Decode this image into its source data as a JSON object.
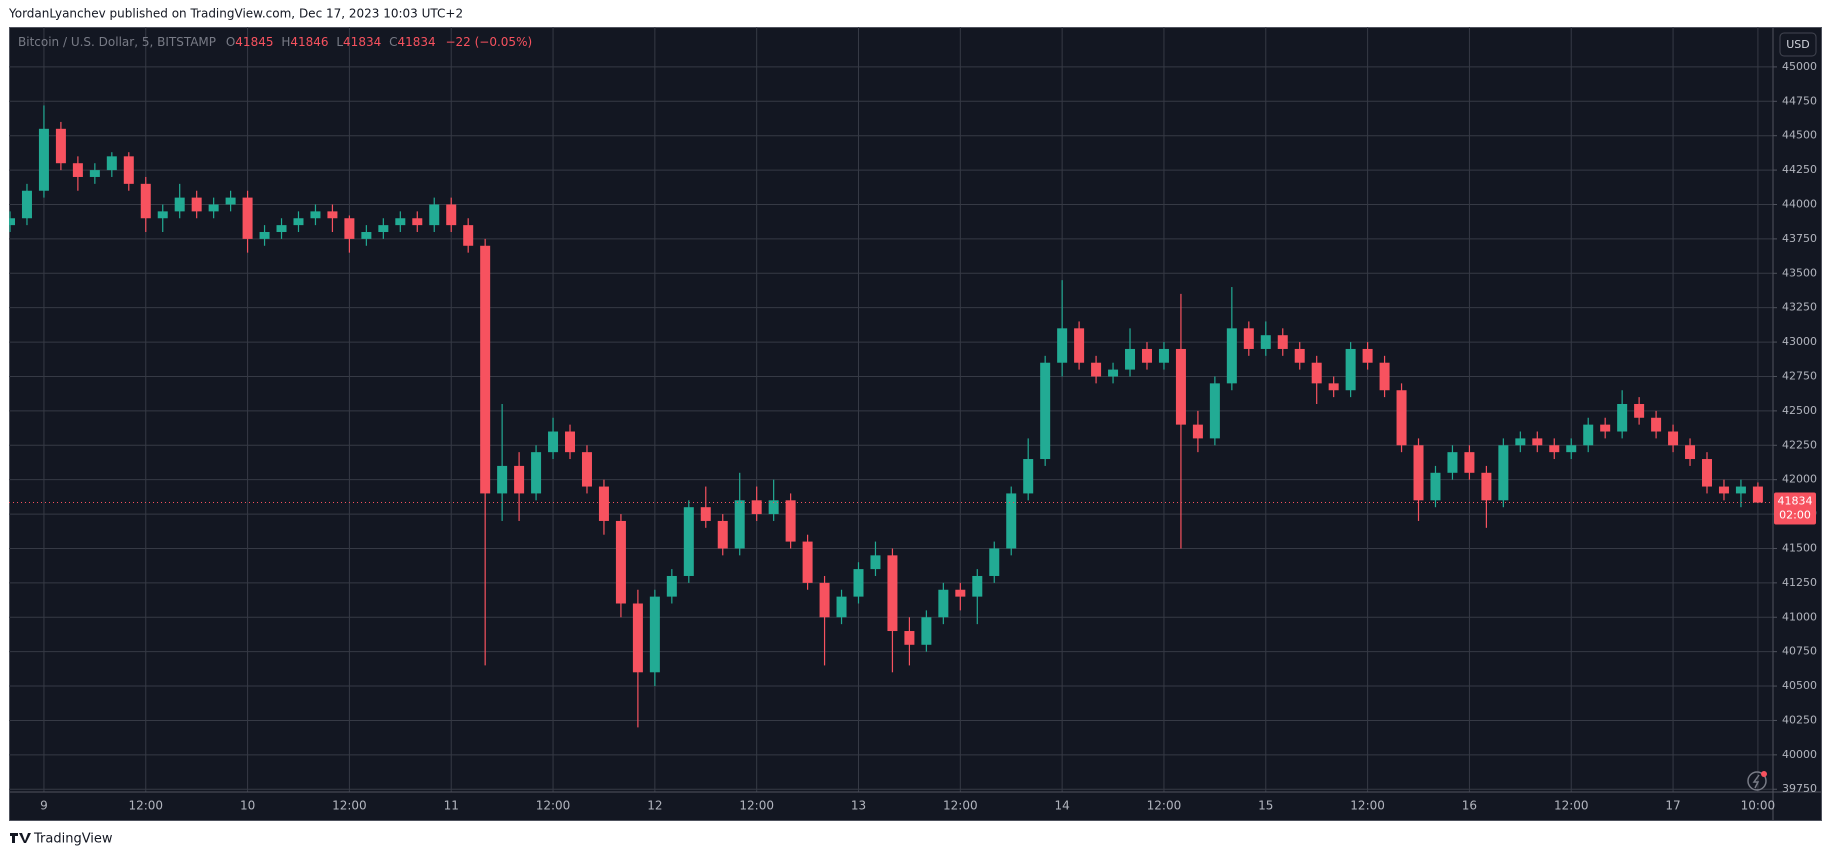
{
  "header": {
    "publisher": "YordanLyanchev published on TradingView.com, Dec 17, 2023 10:03 UTC+2"
  },
  "footer": {
    "brand": "TradingView"
  },
  "chart_data": {
    "type": "candlestick",
    "legend": {
      "symbol": "Bitcoin / U.S. Dollar, 5, BITSTAMP",
      "fields": [
        {
          "key": "O",
          "value": 41845
        },
        {
          "key": "H",
          "value": 41846
        },
        {
          "key": "L",
          "value": 41834
        },
        {
          "key": "C",
          "value": 41834
        }
      ],
      "change": "−22 (−0.05%)"
    },
    "currency": "USD",
    "last_price": 41834,
    "countdown": "02:00",
    "up_color": "#22ab94",
    "down_color": "#f7525f",
    "grid": true,
    "categories": [
      null,
      null,
      "9",
      null,
      null,
      null,
      null,
      null,
      "12:00",
      null,
      null,
      null,
      null,
      null,
      "10",
      null,
      null,
      null,
      null,
      null,
      "12:00",
      null,
      null,
      null,
      null,
      null,
      "11",
      null,
      null,
      null,
      null,
      null,
      "12:00",
      null,
      null,
      null,
      null,
      null,
      "12",
      null,
      null,
      null,
      null,
      null,
      "12:00",
      null,
      null,
      null,
      null,
      null,
      "13",
      null,
      null,
      null,
      null,
      null,
      "12:00",
      null,
      null,
      null,
      null,
      null,
      "14",
      null,
      null,
      null,
      null,
      null,
      "12:00",
      null,
      null,
      null,
      null,
      null,
      "15",
      null,
      null,
      null,
      null,
      null,
      "12:00",
      null,
      null,
      null,
      null,
      null,
      "16",
      null,
      null,
      null,
      null,
      null,
      "12:00",
      null,
      null,
      null,
      null,
      null,
      "17",
      null,
      null,
      null,
      null,
      "10:00"
    ],
    "open": [
      43850,
      43900,
      44100,
      44550,
      44300,
      44200,
      44250,
      44350,
      44150,
      43900,
      43950,
      44050,
      43950,
      44000,
      44050,
      43750,
      43800,
      43850,
      43900,
      43950,
      43900,
      43750,
      43800,
      43850,
      43900,
      43850,
      44000,
      43850,
      43700,
      41900,
      42100,
      41900,
      42200,
      42350,
      42200,
      41950,
      41700,
      41100,
      40600,
      41150,
      41300,
      41800,
      41700,
      41500,
      41850,
      41750,
      41850,
      41550,
      41250,
      41000,
      41150,
      41350,
      41450,
      40900,
      40800,
      41000,
      41200,
      41150,
      41300,
      41500,
      41900,
      42150,
      42850,
      43100,
      42850,
      42750,
      42800,
      42950,
      42850,
      42950,
      42400,
      42300,
      42700,
      43100,
      42950,
      43050,
      42950,
      42850,
      42700,
      42650,
      42950,
      42850,
      42650,
      42250,
      41850,
      42050,
      42200,
      42050,
      41850,
      42250,
      42300,
      42250,
      42200,
      42250,
      42400,
      42350,
      42550,
      42450,
      42350,
      42250,
      42150,
      41950,
      41900,
      41950
    ],
    "high": [
      43950,
      44150,
      44720,
      44600,
      44350,
      44300,
      44380,
      44380,
      44200,
      44000,
      44150,
      44100,
      44050,
      44100,
      44100,
      43850,
      43900,
      43950,
      44000,
      44000,
      43920,
      43850,
      43900,
      43950,
      43950,
      44050,
      44050,
      43900,
      43750,
      42550,
      42200,
      42250,
      42450,
      42400,
      42250,
      42000,
      41750,
      41200,
      41200,
      41350,
      41850,
      41950,
      41750,
      42050,
      41950,
      42000,
      41900,
      41600,
      41300,
      41200,
      41400,
      41550,
      41500,
      41000,
      41050,
      41250,
      41250,
      41350,
      41550,
      41950,
      42300,
      42900,
      43450,
      43150,
      42900,
      42850,
      43100,
      43000,
      43000,
      43350,
      42500,
      42750,
      43400,
      43150,
      43150,
      43100,
      43000,
      42900,
      42750,
      43000,
      43000,
      42900,
      42700,
      42300,
      42100,
      42250,
      42250,
      42100,
      42300,
      42350,
      42350,
      42300,
      42300,
      42450,
      42450,
      42650,
      42600,
      42500,
      42400,
      42300,
      42200,
      42000,
      42000,
      41980
    ],
    "low": [
      43800,
      43850,
      44050,
      44250,
      44100,
      44150,
      44200,
      44100,
      43800,
      43800,
      43900,
      43900,
      43900,
      43950,
      43650,
      43700,
      43750,
      43800,
      43850,
      43800,
      43650,
      43700,
      43750,
      43800,
      43800,
      43800,
      43800,
      43650,
      40650,
      41700,
      41700,
      41850,
      42150,
      42150,
      41900,
      41600,
      41000,
      40200,
      40500,
      41100,
      41250,
      41650,
      41450,
      41450,
      41700,
      41700,
      41500,
      41200,
      40650,
      40950,
      41100,
      41300,
      40600,
      40650,
      40750,
      40950,
      41050,
      40950,
      41250,
      41450,
      41850,
      42100,
      42750,
      42800,
      42700,
      42700,
      42750,
      42800,
      42800,
      41500,
      42200,
      42250,
      42650,
      42900,
      42900,
      42900,
      42800,
      42550,
      42600,
      42600,
      42800,
      42600,
      42200,
      41700,
      41800,
      42000,
      42000,
      41650,
      41800,
      42200,
      42200,
      42150,
      42150,
      42200,
      42300,
      42300,
      42400,
      42300,
      42200,
      42100,
      41900,
      41850,
      41800,
      41830
    ],
    "close": [
      43900,
      44100,
      44550,
      44300,
      44200,
      44250,
      44350,
      44150,
      43900,
      43950,
      44050,
      43950,
      44000,
      44050,
      43750,
      43800,
      43850,
      43900,
      43950,
      43900,
      43750,
      43800,
      43850,
      43900,
      43850,
      44000,
      43850,
      43700,
      41900,
      42100,
      41900,
      42200,
      42350,
      42200,
      41950,
      41700,
      41100,
      40600,
      41150,
      41300,
      41800,
      41700,
      41500,
      41850,
      41750,
      41850,
      41550,
      41250,
      41000,
      41150,
      41350,
      41450,
      40900,
      40800,
      41000,
      41200,
      41150,
      41300,
      41500,
      41900,
      42150,
      42850,
      43100,
      42850,
      42750,
      42800,
      42950,
      42850,
      42950,
      42400,
      42300,
      42700,
      43100,
      42950,
      43050,
      42950,
      42850,
      42700,
      42650,
      42950,
      42850,
      42650,
      42250,
      41850,
      42050,
      42200,
      42050,
      41850,
      42250,
      42300,
      42250,
      42200,
      42250,
      42400,
      42350,
      42550,
      42450,
      42350,
      42250,
      42150,
      41950,
      41900,
      41950,
      41834
    ],
    "ylim": [
      39730,
      45290
    ],
    "yticks": [
      39750,
      40000,
      40250,
      40500,
      40750,
      41000,
      41250,
      41500,
      41750,
      42000,
      42250,
      42500,
      42750,
      43000,
      43250,
      43500,
      43750,
      44000,
      44250,
      44500,
      44750,
      45000
    ]
  }
}
